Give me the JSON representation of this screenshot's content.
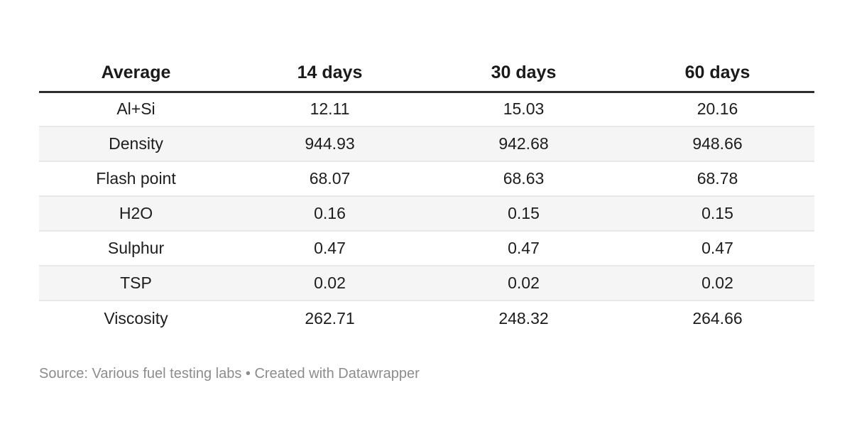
{
  "table": {
    "columns": [
      "Average",
      "14 days",
      "30 days",
      "60 days"
    ],
    "rows": [
      {
        "label": "Al+Si",
        "values": [
          "12.11",
          "15.03",
          "20.16"
        ]
      },
      {
        "label": "Density",
        "values": [
          "944.93",
          "942.68",
          "948.66"
        ]
      },
      {
        "label": "Flash point",
        "values": [
          "68.07",
          "68.63",
          "68.78"
        ]
      },
      {
        "label": "H2O",
        "values": [
          "0.16",
          "0.15",
          "0.15"
        ]
      },
      {
        "label": "Sulphur",
        "values": [
          "0.47",
          "0.47",
          "0.47"
        ]
      },
      {
        "label": "TSP",
        "values": [
          "0.02",
          "0.02",
          "0.02"
        ]
      },
      {
        "label": "Viscosity",
        "values": [
          "262.71",
          "248.32",
          "264.66"
        ]
      }
    ]
  },
  "footer": {
    "text": "Source: Various fuel testing labs • Created with Datawrapper"
  },
  "colors": {
    "text": "#1d1d1d",
    "header-text": "#1a1a1a",
    "header-rule": "#2e2e2e",
    "row-rule": "#e8e8e8",
    "stripe": "#f5f5f5",
    "footer-text": "#8c8c8c",
    "page-bg": "#ffffff"
  },
  "chart_data": {
    "type": "table",
    "columns": [
      "Average",
      "14 days",
      "30 days",
      "60 days"
    ],
    "rows": [
      [
        "Al+Si",
        12.11,
        15.03,
        20.16
      ],
      [
        "Density",
        944.93,
        942.68,
        948.66
      ],
      [
        "Flash point",
        68.07,
        68.63,
        68.78
      ],
      [
        "H2O",
        0.16,
        0.15,
        0.15
      ],
      [
        "Sulphur",
        0.47,
        0.47,
        0.47
      ],
      [
        "TSP",
        0.02,
        0.02,
        0.02
      ],
      [
        "Viscosity",
        262.71,
        248.32,
        264.66
      ]
    ],
    "striped_rows": [
      "Density",
      "H2O",
      "TSP"
    ],
    "source": "Various fuel testing labs",
    "attribution": "Created with Datawrapper"
  }
}
